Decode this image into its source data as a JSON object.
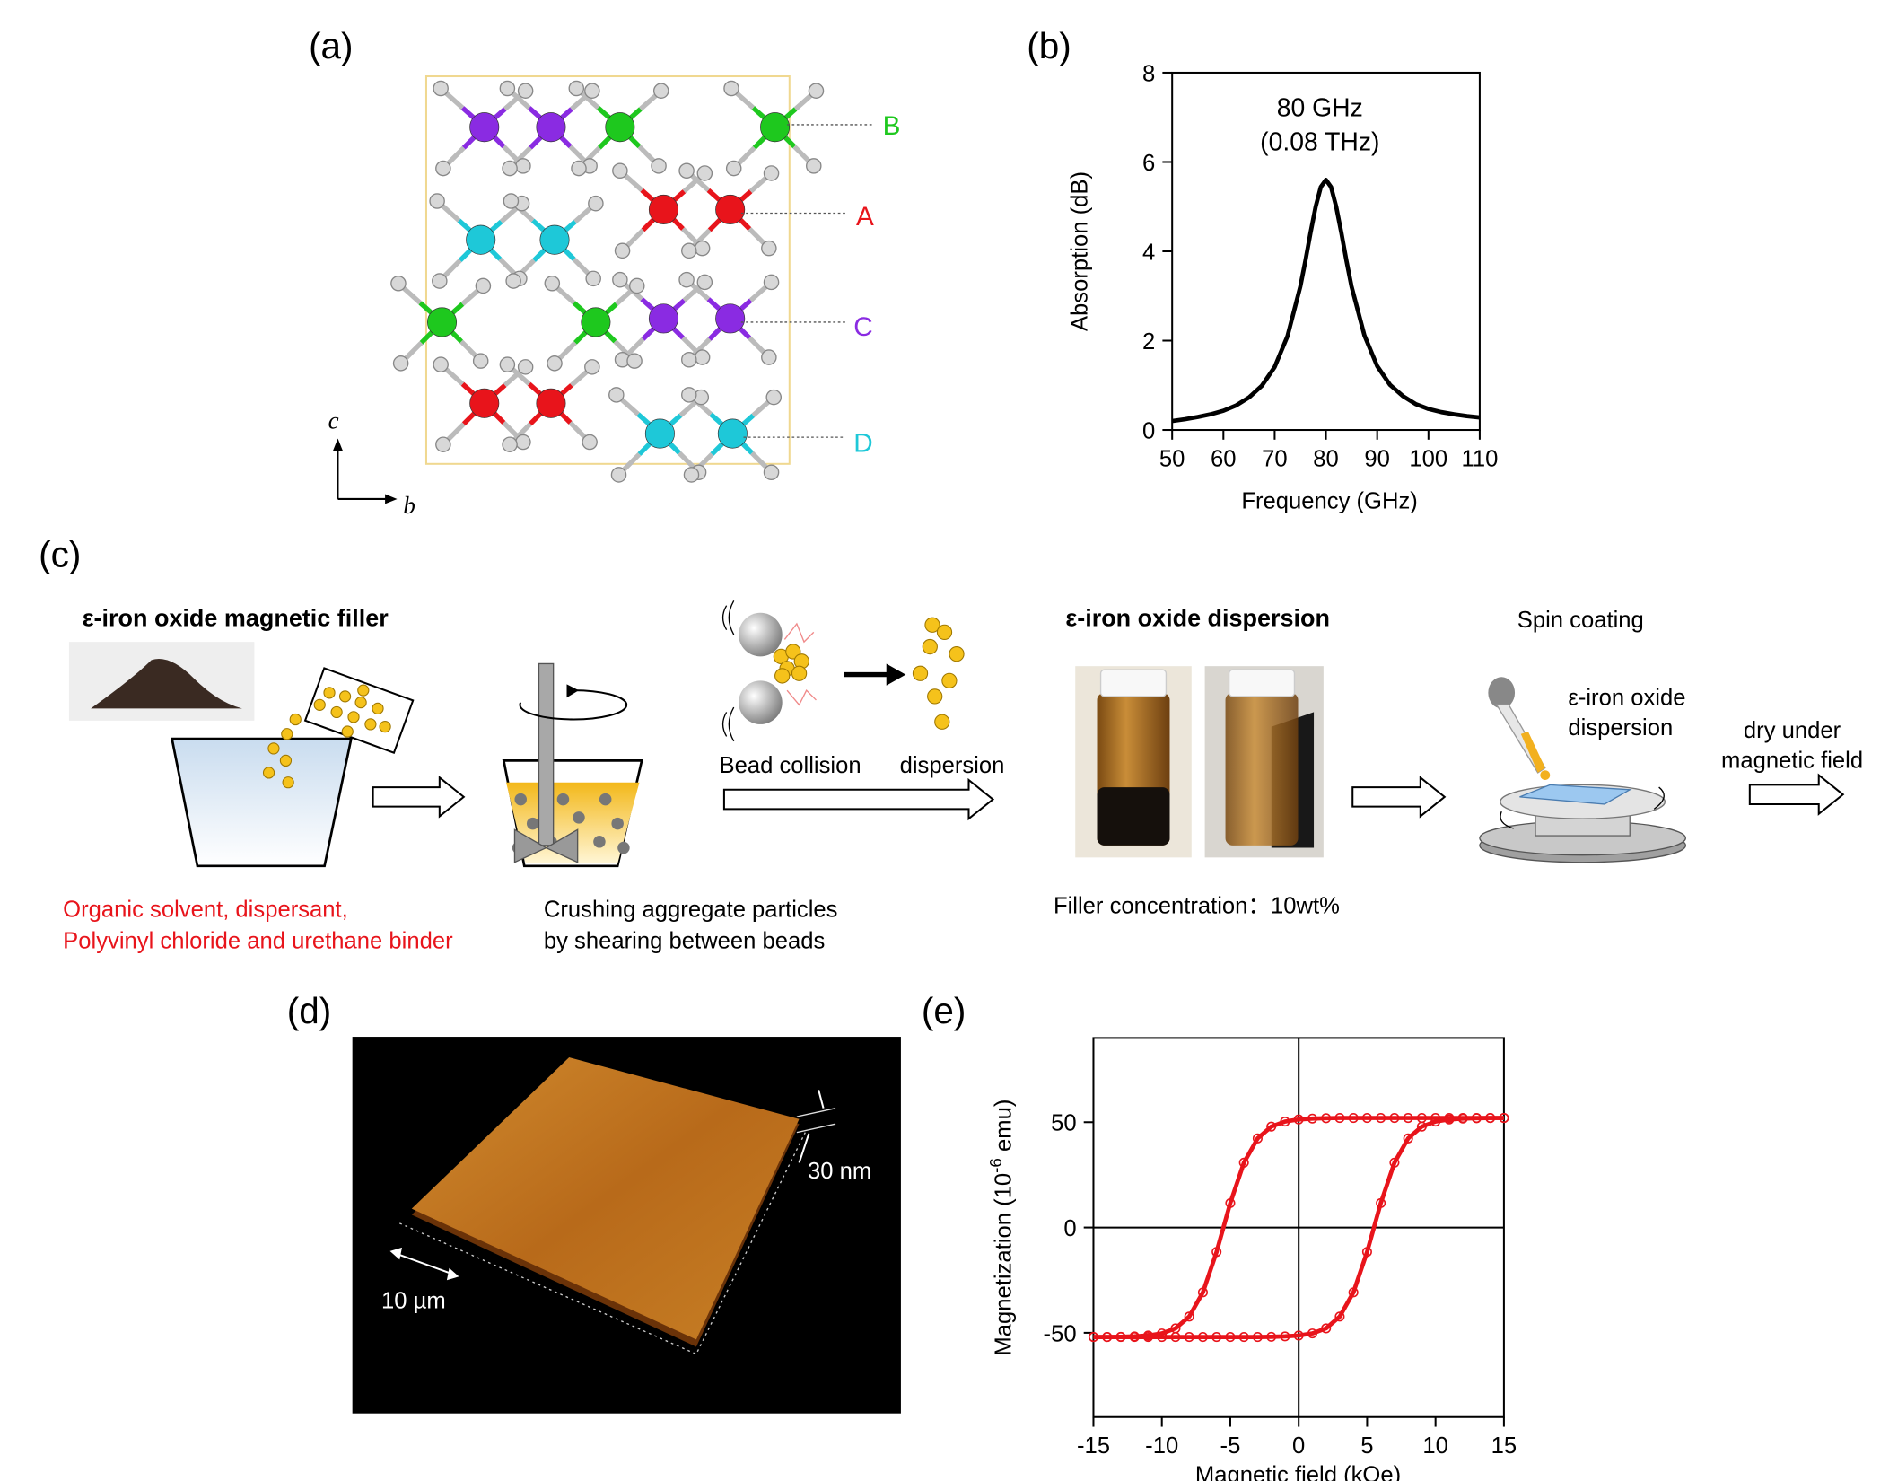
{
  "panel_labels": [
    "(a)",
    "(b)",
    "(c)",
    "(d)",
    "(e)"
  ],
  "crystal": {
    "sites": [
      "B",
      "A",
      "C",
      "D"
    ],
    "axes": [
      "c",
      "b"
    ]
  },
  "process": {
    "filler_title": "ε-iron oxide magnetic filler",
    "solvent_lines": [
      "Organic solvent, dispersant,",
      "Polyvinyl chloride and urethane binder"
    ],
    "crushing_lines": [
      "Crushing aggregate particles",
      "by shearing between beads"
    ],
    "bead_collision": "Bead collision",
    "dispersion": "dispersion",
    "dispersion_title": "ε-iron oxide dispersion",
    "filler_concentration": "Filler concentration：10wt%",
    "spin_coating": "Spin coating",
    "spin_lines": [
      "ε-iron oxide",
      "dispersion"
    ],
    "dry_lines": [
      "dry under",
      "magnetic field"
    ]
  },
  "afm": {
    "height_label": "30 nm",
    "scale_label": "10 µm"
  },
  "chart_data": [
    {
      "type": "line",
      "xlabel": "Frequency (GHz)",
      "ylabel": "Absorption (dB)",
      "annotation": [
        "80 GHz",
        "(0.08 THz)"
      ],
      "x": [
        50,
        52.5,
        55,
        57.5,
        60,
        62.5,
        65,
        67.5,
        70,
        72.5,
        75,
        76,
        77,
        78,
        79,
        80,
        81,
        82,
        83,
        84,
        85,
        87.5,
        90,
        92.5,
        95,
        97.5,
        100,
        102.5,
        105,
        107.5,
        110
      ],
      "series": [
        {
          "color": "#000000",
          "values": [
            0.2,
            0.24,
            0.29,
            0.35,
            0.43,
            0.55,
            0.73,
            0.99,
            1.41,
            2.1,
            3.21,
            3.79,
            4.42,
            5.0,
            5.44,
            5.6,
            5.44,
            5.0,
            4.42,
            3.79,
            3.21,
            2.12,
            1.43,
            1.01,
            0.76,
            0.58,
            0.47,
            0.4,
            0.35,
            0.31,
            0.28
          ]
        }
      ],
      "xlim": [
        50,
        110
      ],
      "xticks": [
        50,
        60,
        70,
        80,
        90,
        100,
        110
      ],
      "ylim": [
        0,
        8
      ],
      "yticks": [
        0,
        2,
        4,
        6,
        8
      ],
      "markers": false,
      "zero_lines": false
    },
    {
      "type": "line",
      "xlabel": "Magnetic field (kOe)",
      "ylabel": [
        "Magnetization (10",
        "-6",
        " emu)"
      ],
      "x": [
        -15,
        -14,
        -13,
        -12,
        -11,
        -10,
        -9,
        -8,
        -7,
        -6,
        -5,
        -4,
        -3,
        -2,
        -1,
        0,
        1,
        2,
        3,
        4,
        5,
        6,
        7,
        8,
        9,
        10,
        11,
        12,
        13,
        14,
        15
      ],
      "series": [
        {
          "color": "#e8141b",
          "values": [
            -52,
            -52,
            -51.9,
            -51.7,
            -51.3,
            -50.3,
            -47.9,
            -42.3,
            -30.8,
            -11.6,
            11.6,
            30.8,
            42.3,
            47.9,
            50.3,
            51.3,
            51.7,
            51.9,
            52,
            52,
            52,
            52,
            52,
            52,
            52,
            52,
            52,
            52,
            52,
            52,
            52
          ]
        },
        {
          "color": "#e8141b",
          "values": [
            -52,
            -52,
            -52,
            -52,
            -52,
            -52,
            -52,
            -52,
            -52,
            -52,
            -52,
            -52,
            -52,
            -51.9,
            -51.7,
            -51.3,
            -50.3,
            -47.9,
            -42.3,
            -30.8,
            -11.6,
            11.6,
            30.8,
            42.3,
            47.9,
            50.3,
            51.3,
            51.7,
            51.9,
            52,
            52
          ]
        }
      ],
      "xlim": [
        -15,
        15
      ],
      "xticks": [
        -15,
        -10,
        -5,
        0,
        5,
        10,
        15
      ],
      "ylim": [
        -90,
        90
      ],
      "yticks": [
        -50,
        0,
        50
      ],
      "markers": true,
      "zero_lines": true
    }
  ]
}
